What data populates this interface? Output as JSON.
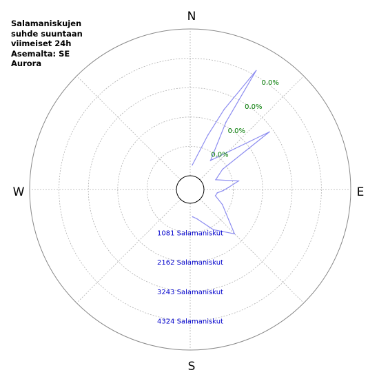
{
  "title_lines": [
    "Salamaniskujen",
    "suhde suuntaan",
    "viimeiset 24h",
    "Asemalta: SE",
    "Aurora"
  ],
  "compass": {
    "north": "N",
    "east": "E",
    "south": "S",
    "west": "W"
  },
  "colors": {
    "trace": "#8c8cf0",
    "percent_labels": "#007a00",
    "count_labels": "#0000cc",
    "grid": "#b0b0b0",
    "outer_ring": "#888888",
    "station_circle": "#000000"
  },
  "chart_data": {
    "type": "polar-line",
    "title": "Salamaniskujen suhde suuntaan viimeiset 24h Asemalta: SE Aurora",
    "ring_max": 5405,
    "ring_values": [
      1081,
      2162,
      3243,
      4324
    ],
    "ring_percent_labels": [
      "0.0%",
      "0.0%",
      "0.0%",
      "0.0%"
    ],
    "ring_count_labels": [
      "1081 Salamaniskut",
      "2162 Salamaniskut",
      "3243 Salamaniskut",
      "4324 Salamaniskut"
    ],
    "series": [
      {
        "points": [
          {
            "bearing": 5,
            "value": 400
          },
          {
            "bearing": 18,
            "value": 1600
          },
          {
            "bearing": 23,
            "value": 2700
          },
          {
            "bearing": 29,
            "value": 4500
          },
          {
            "bearing": 28,
            "value": 2300
          },
          {
            "bearing": 35,
            "value": 800
          },
          {
            "bearing": 54,
            "value": 3100
          },
          {
            "bearing": 58,
            "value": 900
          },
          {
            "bearing": 69,
            "value": 500
          },
          {
            "bearing": 80,
            "value": 1300
          },
          {
            "bearing": 87,
            "value": 900
          },
          {
            "bearing": 92,
            "value": 700
          },
          {
            "bearing": 97,
            "value": 500
          },
          {
            "bearing": 104,
            "value": 450
          },
          {
            "bearing": 115,
            "value": 800
          },
          {
            "bearing": 135,
            "value": 1800
          },
          {
            "bearing": 150,
            "value": 1200
          },
          {
            "bearing": 167,
            "value": 600
          },
          {
            "bearing": 175,
            "value": 500
          }
        ]
      }
    ]
  }
}
